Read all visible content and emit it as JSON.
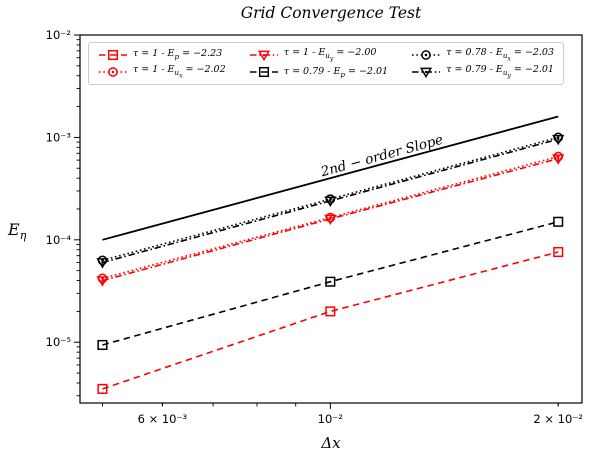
{
  "figure": {
    "title": "Grid Convergence Test",
    "xlabel": "Δx",
    "ylabel_base": "E",
    "ylabel_sub": "η",
    "annotation": "2nd − order Slope"
  },
  "colors": {
    "red": "#ff0000",
    "black": "#000000",
    "legend_border": "#cbcbcb",
    "background": "#ffffff"
  },
  "chart_data": {
    "type": "line",
    "title": "Grid Convergence Test",
    "xlabel": "Δx",
    "ylabel": "E_η",
    "x_scale": "log",
    "y_scale": "log",
    "xlim": [
      0.00467,
      0.0215
    ],
    "ylim": [
      2.55e-06,
      0.01
    ],
    "grid": false,
    "x": [
      0.005,
      0.01,
      0.02
    ],
    "series": [
      {
        "label": "τ = 1 - E_p = −2.23",
        "tau": "τ = 1",
        "err_sub": "p",
        "order": "−2.23",
        "color": "#ff0000",
        "linestyle": "dashed",
        "marker": "square",
        "values": [
          3.5e-06,
          2e-05,
          7.6e-05
        ]
      },
      {
        "label": "τ = 1 - E_ux = −2.02",
        "tau": "τ = 1",
        "err_sub": "ux",
        "order": "−2.02",
        "color": "#ff0000",
        "linestyle": "dotted",
        "marker": "circle",
        "values": [
          4.2e-05,
          0.000165,
          0.00065
        ]
      },
      {
        "label": "τ = 1 - E_uy = −2.00",
        "tau": "τ = 1",
        "err_sub": "uy",
        "order": "−2.00",
        "color": "#ff0000",
        "linestyle": "dashdot",
        "marker": "triangle-down",
        "values": [
          4e-05,
          0.00016,
          0.00062
        ]
      },
      {
        "label": "τ = 0.79 - E_p = −2.01",
        "tau": "τ = 0.79",
        "err_sub": "p",
        "order": "−2.01",
        "color": "#000000",
        "linestyle": "dashed",
        "marker": "square",
        "values": [
          9.4e-06,
          3.9e-05,
          0.00015
        ]
      },
      {
        "label": "τ = 0.78 - E_ux = −2.03",
        "tau": "τ = 0.78",
        "err_sub": "ux",
        "order": "−2.03",
        "color": "#000000",
        "linestyle": "dotted",
        "marker": "circle",
        "values": [
          6.3e-05,
          0.00025,
          0.001
        ]
      },
      {
        "label": "τ = 0.79 - E_uy = −2.01",
        "tau": "τ = 0.79",
        "err_sub": "uy",
        "order": "−2.01",
        "color": "#000000",
        "linestyle": "dashdot",
        "marker": "triangle-down",
        "values": [
          6e-05,
          0.00024,
          0.00096
        ]
      }
    ],
    "reference_line": {
      "label": "2nd − order Slope",
      "x": [
        0.005,
        0.02
      ],
      "y": [
        0.0001,
        0.0016
      ],
      "color": "#000000",
      "linestyle": "solid"
    },
    "x_ticks": [
      {
        "value": 0.006,
        "label": "6 × 10⁻³"
      },
      {
        "value": 0.01,
        "label": "10⁻²"
      },
      {
        "value": 0.02,
        "label": "2 × 10⁻²"
      }
    ],
    "x_minor_ticks": [
      0.005,
      0.006,
      0.007,
      0.008,
      0.009,
      0.02
    ],
    "y_ticks": [
      {
        "value": 0.01,
        "label": "10⁻²"
      },
      {
        "value": 0.001,
        "label": "10⁻³"
      },
      {
        "value": 0.0001,
        "label": "10⁻⁴"
      },
      {
        "value": 1e-05,
        "label": "10⁻⁵"
      }
    ],
    "legend": {
      "position": "upper center",
      "columns": 3,
      "display_order": [
        0,
        2,
        4,
        1,
        3,
        5
      ]
    }
  }
}
